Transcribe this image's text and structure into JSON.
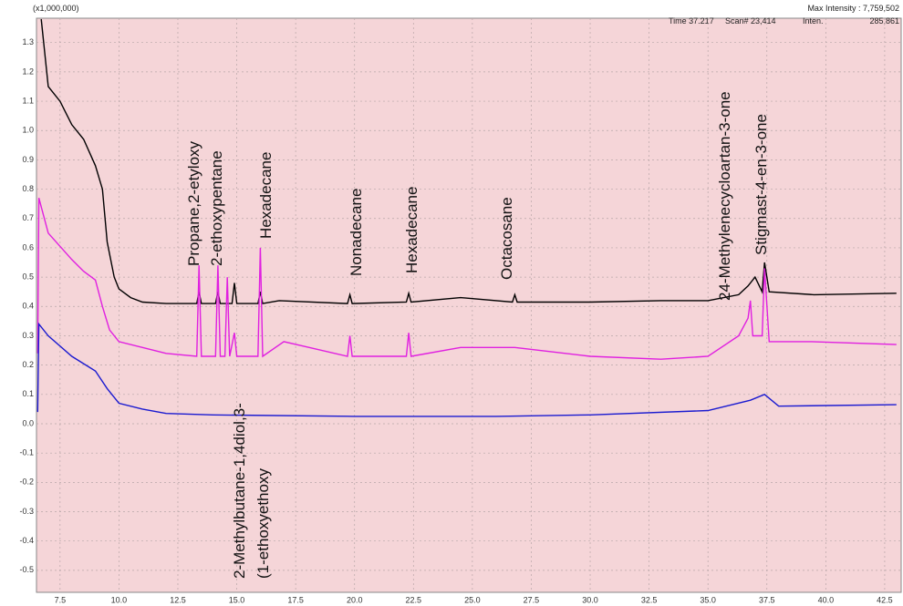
{
  "chart_data": {
    "type": "line",
    "header": {
      "unit": "(x1,000,000)",
      "max_intensity": "Max Intensity : 7,759,502",
      "time": "Time 37.217",
      "scan": "Scan# 23,414",
      "inten_label": "Inten.",
      "inten_value": "285,861"
    },
    "xlim": [
      6.5,
      43.2
    ],
    "ylim": [
      -0.575,
      1.383
    ],
    "xticks": [
      7.5,
      {
        "value": 10,
        "label": "10.0"
      },
      12.5,
      {
        "value": 15,
        "label": "15.0"
      },
      17.5,
      {
        "value": 20,
        "label": "20.0"
      },
      22.5,
      {
        "value": 25,
        "label": "25.0"
      },
      27.5,
      {
        "value": 30,
        "label": "30.0"
      },
      32.5,
      {
        "value": 35,
        "label": "35.0"
      },
      37.5,
      {
        "value": 40,
        "label": "40.0"
      },
      42.5
    ],
    "yticks": [
      -0.5,
      -0.4,
      -0.3,
      -0.2,
      -0.1,
      {
        "value": 0,
        "label": "0.0"
      },
      0.1,
      0.2,
      0.3,
      0.4,
      0.5,
      0.6,
      0.7,
      0.8,
      0.9,
      {
        "value": 1,
        "label": "1.0"
      },
      1.1,
      1.2,
      1.3
    ],
    "grid": true,
    "series": [
      {
        "color": "#000000",
        "x": [
          6.7,
          7.0,
          7.5,
          8.0,
          8.5,
          9.0,
          9.3,
          9.5,
          9.8,
          10.0,
          10.5,
          11.0,
          12.0,
          13.3,
          13.4,
          13.5,
          14.1,
          14.2,
          14.3,
          14.8,
          14.9,
          15.0,
          15.9,
          16.0,
          16.1,
          16.8,
          19.7,
          19.8,
          19.9,
          22.2,
          22.3,
          22.4,
          24.5,
          26.7,
          26.8,
          26.9,
          30.0,
          33.0,
          35.0,
          36.3,
          36.7,
          37.0,
          37.3,
          37.4,
          37.6,
          39.5,
          43.0
        ],
        "values": [
          1.38,
          1.15,
          1.1,
          1.02,
          0.97,
          0.88,
          0.8,
          0.62,
          0.5,
          0.46,
          0.43,
          0.415,
          0.41,
          0.41,
          0.45,
          0.41,
          0.41,
          0.45,
          0.41,
          0.41,
          0.48,
          0.41,
          0.41,
          0.45,
          0.41,
          0.42,
          0.41,
          0.44,
          0.41,
          0.415,
          0.445,
          0.415,
          0.43,
          0.415,
          0.44,
          0.415,
          0.415,
          0.42,
          0.42,
          0.44,
          0.47,
          0.5,
          0.45,
          0.55,
          0.45,
          0.44,
          0.445
        ]
      },
      {
        "color": "#e020e0",
        "x": [
          6.55,
          6.6,
          7.0,
          8.0,
          8.5,
          9.0,
          9.3,
          9.6,
          10.0,
          11.0,
          12.0,
          13.3,
          13.4,
          13.5,
          14.1,
          14.2,
          14.3,
          14.5,
          14.6,
          14.7,
          14.9,
          15.0,
          15.9,
          16.0,
          16.1,
          17.0,
          19.7,
          19.8,
          19.9,
          22.2,
          22.3,
          22.4,
          24.5,
          26.8,
          30.0,
          33.0,
          35.0,
          36.3,
          36.7,
          36.8,
          36.9,
          37.3,
          37.4,
          37.6,
          39.4,
          43.0
        ],
        "values": [
          0.24,
          0.77,
          0.65,
          0.56,
          0.52,
          0.49,
          0.4,
          0.32,
          0.28,
          0.26,
          0.24,
          0.23,
          0.54,
          0.23,
          0.23,
          0.54,
          0.23,
          0.23,
          0.5,
          0.23,
          0.31,
          0.23,
          0.23,
          0.6,
          0.23,
          0.28,
          0.23,
          0.3,
          0.23,
          0.23,
          0.31,
          0.23,
          0.26,
          0.26,
          0.23,
          0.22,
          0.23,
          0.3,
          0.36,
          0.42,
          0.3,
          0.3,
          0.53,
          0.28,
          0.28,
          0.27
        ]
      },
      {
        "color": "#1a1ad0",
        "x": [
          6.55,
          6.6,
          7.0,
          8.0,
          9.0,
          9.5,
          10.0,
          11.0,
          12.0,
          14.0,
          20.0,
          26.0,
          30.0,
          35.0,
          36.8,
          37.4,
          38.0,
          43.0
        ],
        "values": [
          0.04,
          0.34,
          0.3,
          0.23,
          0.18,
          0.12,
          0.07,
          0.05,
          0.035,
          0.03,
          0.025,
          0.025,
          0.03,
          0.045,
          0.08,
          0.1,
          0.06,
          0.065
        ]
      }
    ],
    "annotations": [
      "Propane,2-etyloxy",
      "2-ethoxypentane",
      "Hexadecane",
      "Nonadecane",
      "Hexadecane",
      "Octacosane",
      "24-Methylenecycloartan-3-one",
      "Stigmast-4-en-3-one",
      "2-Methylbutane-1,4diol,3-",
      "(1-ethoxyethoxy"
    ]
  }
}
